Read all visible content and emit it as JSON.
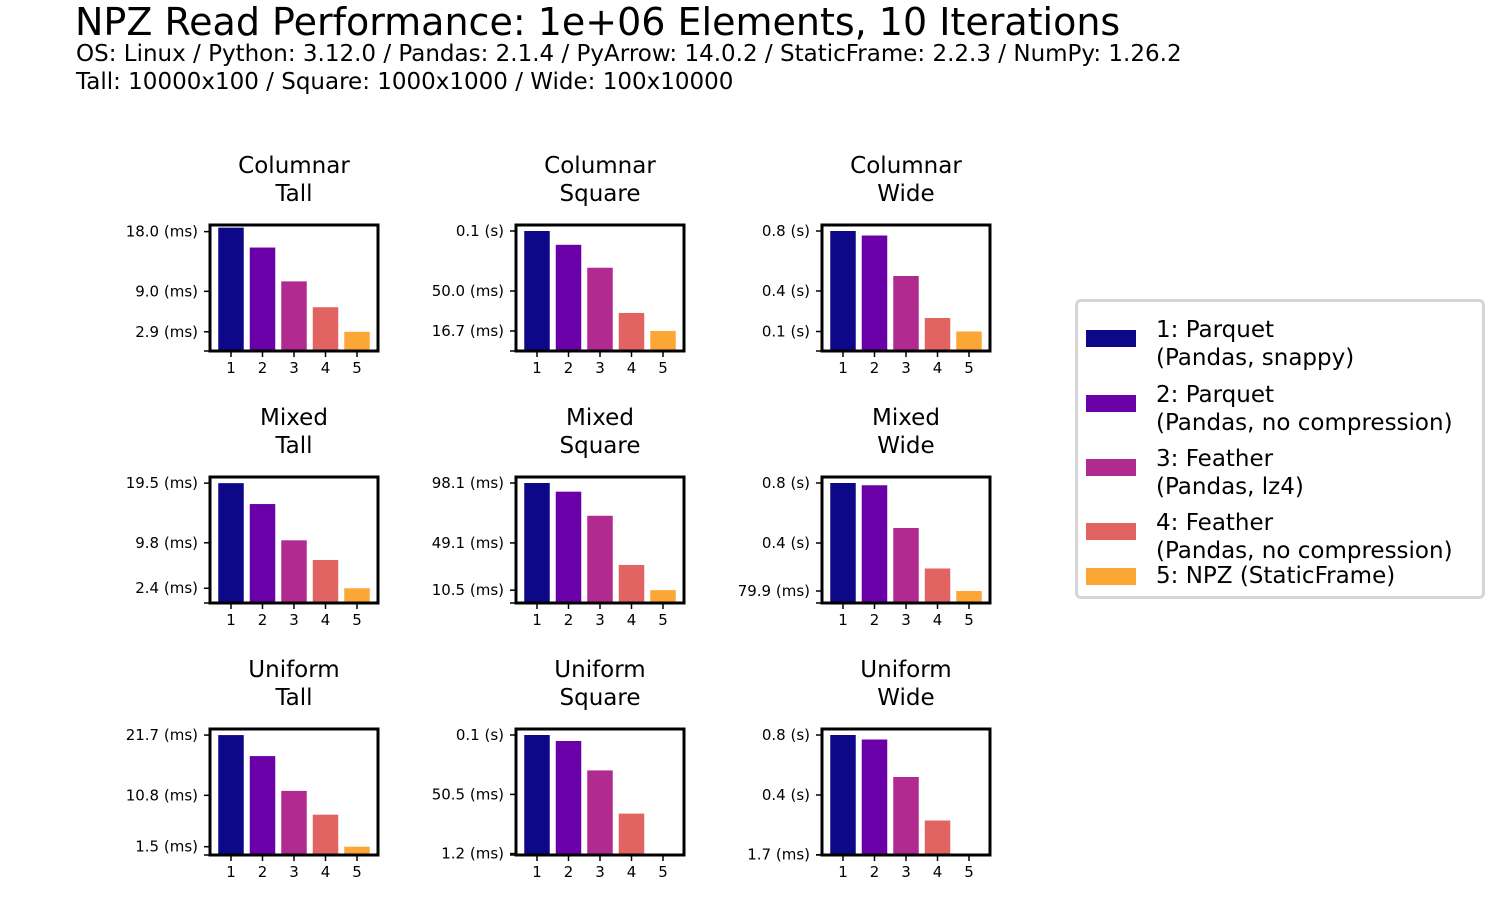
{
  "title": "NPZ Read Performance: 1e+06 Elements, 10 Iterations",
  "subtitle_line1": "OS: Linux / Python: 3.12.0 / Pandas: 2.1.4 / PyArrow: 14.0.2 / StaticFrame: 2.2.3 / NumPy: 1.26.2",
  "subtitle_line2": "Tall: 10000x100 / Square: 1000x1000 / Wide: 100x10000",
  "colors": [
    "#0d0887",
    "#6a00a8",
    "#b12a90",
    "#e16462",
    "#fca636"
  ],
  "legend": {
    "items": [
      {
        "line1": "1: Parquet",
        "line2": "(Pandas, snappy)"
      },
      {
        "line1": "2: Parquet",
        "line2": "(Pandas, no compression)"
      },
      {
        "line1": "3: Feather",
        "line2": "(Pandas, lz4)"
      },
      {
        "line1": "4: Feather",
        "line2": "(Pandas, no compression)"
      },
      {
        "line1": "5: NPZ (StaticFrame)",
        "line2": ""
      }
    ]
  },
  "chart_data": [
    {
      "type": "bar",
      "title": "Columnar\nTall",
      "categories": [
        "1",
        "2",
        "3",
        "4",
        "5"
      ],
      "values": [
        18.6,
        15.6,
        10.5,
        6.6,
        2.9
      ],
      "unit": "ms",
      "yticks": [
        {
          "value": 18.0,
          "label": "18.0 (ms)"
        },
        {
          "value": 9.0,
          "label": "9.0 (ms)"
        },
        {
          "value": 2.9,
          "label": "2.9 (ms)"
        }
      ],
      "ylim": [
        0,
        19.0
      ]
    },
    {
      "type": "bar",
      "title": "Columnar\nSquare",
      "categories": [
        "1",
        "2",
        "3",
        "4",
        "5"
      ],
      "values": [
        0.1,
        0.0885,
        0.0694,
        0.0317,
        0.0167
      ],
      "unit": "s",
      "yticks": [
        {
          "value": 0.1,
          "label": "0.1 (s)"
        },
        {
          "value": 0.05,
          "label": "50.0 (ms)"
        },
        {
          "value": 0.0167,
          "label": "16.7 (ms)"
        }
      ],
      "ylim": [
        0,
        0.105
      ]
    },
    {
      "type": "bar",
      "title": "Columnar\nWide",
      "categories": [
        "1",
        "2",
        "3",
        "4",
        "5"
      ],
      "values": [
        0.8,
        0.77,
        0.5,
        0.22,
        0.13
      ],
      "unit": "s",
      "yticks": [
        {
          "value": 0.8,
          "label": "0.8 (s)"
        },
        {
          "value": 0.4,
          "label": "0.4 (s)"
        },
        {
          "value": 0.13,
          "label": "0.1 (s)"
        }
      ],
      "ylim": [
        0,
        0.84
      ]
    },
    {
      "type": "bar",
      "title": "Mixed\nTall",
      "categories": [
        "1",
        "2",
        "3",
        "4",
        "5"
      ],
      "values": [
        19.5,
        16.1,
        10.2,
        7.0,
        2.4
      ],
      "unit": "ms",
      "yticks": [
        {
          "value": 19.5,
          "label": "19.5 (ms)"
        },
        {
          "value": 9.8,
          "label": "9.8 (ms)"
        },
        {
          "value": 2.4,
          "label": "2.4 (ms)"
        }
      ],
      "ylim": [
        0,
        20.5
      ]
    },
    {
      "type": "bar",
      "title": "Mixed\nSquare",
      "categories": [
        "1",
        "2",
        "3",
        "4",
        "5"
      ],
      "values": [
        98.1,
        91.0,
        71.3,
        31.1,
        10.5
      ],
      "unit": "ms",
      "yticks": [
        {
          "value": 98.1,
          "label": "98.1 (ms)"
        },
        {
          "value": 49.1,
          "label": "49.1 (ms)"
        },
        {
          "value": 10.5,
          "label": "10.5 (ms)"
        }
      ],
      "ylim": [
        0,
        103.0
      ]
    },
    {
      "type": "bar",
      "title": "Mixed\nWide",
      "categories": [
        "1",
        "2",
        "3",
        "4",
        "5"
      ],
      "values": [
        0.8,
        0.785,
        0.5,
        0.23,
        0.0799
      ],
      "unit": "s",
      "yticks": [
        {
          "value": 0.8,
          "label": "0.8 (s)"
        },
        {
          "value": 0.4,
          "label": "0.4 (s)"
        },
        {
          "value": 0.0799,
          "label": "79.9 (ms)"
        }
      ],
      "ylim": [
        0,
        0.84
      ]
    },
    {
      "type": "bar",
      "title": "Uniform\nTall",
      "categories": [
        "1",
        "2",
        "3",
        "4",
        "5"
      ],
      "values": [
        21.7,
        17.9,
        11.6,
        7.3,
        1.5
      ],
      "unit": "ms",
      "yticks": [
        {
          "value": 21.7,
          "label": "21.7 (ms)"
        },
        {
          "value": 10.8,
          "label": "10.8 (ms)"
        },
        {
          "value": 1.5,
          "label": "1.5 (ms)"
        }
      ],
      "ylim": [
        0,
        22.8
      ]
    },
    {
      "type": "bar",
      "title": "Uniform\nSquare",
      "categories": [
        "1",
        "2",
        "3",
        "4",
        "5"
      ],
      "values": [
        0.1,
        0.095,
        0.0705,
        0.0345,
        0.0012
      ],
      "unit": "s",
      "yticks": [
        {
          "value": 0.1,
          "label": "0.1 (s)"
        },
        {
          "value": 0.0505,
          "label": "50.5 (ms)"
        },
        {
          "value": 0.0012,
          "label": "1.2 (ms)"
        }
      ],
      "ylim": [
        0,
        0.105
      ]
    },
    {
      "type": "bar",
      "title": "Uniform\nWide",
      "categories": [
        "1",
        "2",
        "3",
        "4",
        "5"
      ],
      "values": [
        0.8,
        0.77,
        0.52,
        0.23,
        0.0017
      ],
      "unit": "s",
      "yticks": [
        {
          "value": 0.8,
          "label": "0.8 (s)"
        },
        {
          "value": 0.4,
          "label": "0.4 (s)"
        },
        {
          "value": 0.0017,
          "label": "1.7 (ms)"
        }
      ],
      "ylim": [
        0,
        0.84
      ]
    }
  ]
}
